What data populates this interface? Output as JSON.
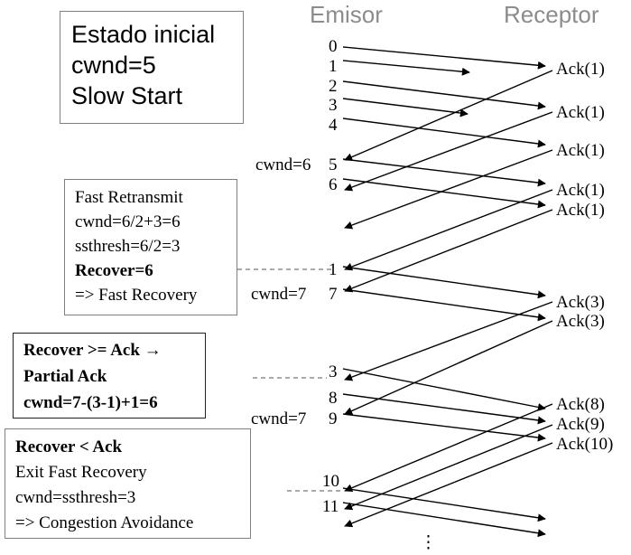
{
  "headers": {
    "sender": "Emisor",
    "receiver": "Receptor"
  },
  "box_initial": {
    "line1": "Estado inicial",
    "line2": "cwnd=5",
    "line3": "Slow Start"
  },
  "box_fast_retransmit": {
    "line1": "Fast Retransmit",
    "line2": "cwnd=6/2+3=6",
    "line3": "ssthresh=6/2=3",
    "line4": "Recover=6",
    "line5": "=> Fast Recovery"
  },
  "box_partial_ack": {
    "line1": "Recover >= Ack →",
    "line2": "Partial Ack",
    "line3": "cwnd=7-(3-1)+1=6"
  },
  "box_exit": {
    "line1": "Recover < Ack",
    "line2": "Exit Fast Recovery",
    "line3": "cwnd=ssthresh=3",
    "line4": "=> Congestion Avoidance"
  },
  "sender_labels": {
    "s0": "0",
    "s1": "1",
    "s2": "2",
    "s3": "3",
    "s4": "4",
    "s5": "5",
    "s6": "6",
    "r1": "1",
    "s7": "7",
    "r3": "3",
    "s8": "8",
    "s9": "9",
    "s10": "10",
    "s11": "11"
  },
  "cwnd_labels": {
    "c1": "cwnd=6",
    "c2": "cwnd=7",
    "c3": "cwnd=7"
  },
  "ack_labels": {
    "a1": "Ack(1)",
    "a2": "Ack(1)",
    "a3": "Ack(1)",
    "a4": "Ack(1)",
    "a5": "Ack(1)",
    "a6": "Ack(3)",
    "a7": "Ack(3)",
    "a8": "Ack(8)",
    "a9": "Ack(9)",
    "a10": "Ack(10)"
  },
  "continuation": "⋮"
}
